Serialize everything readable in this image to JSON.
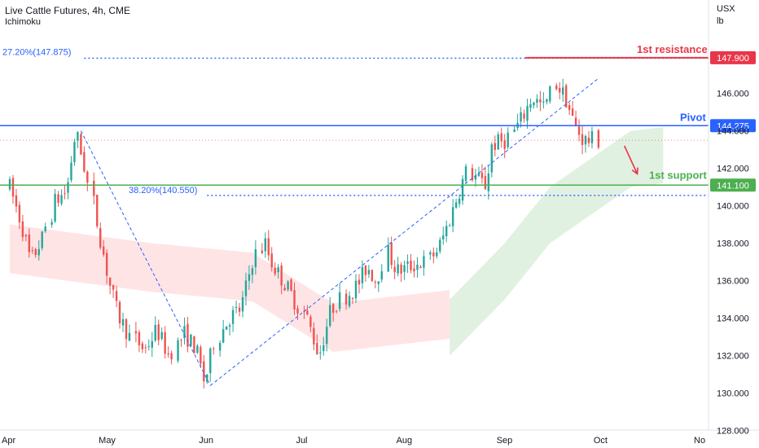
{
  "header": {
    "title": "Live Cattle Futures, 4h, CME",
    "indicator": "Ichimoku"
  },
  "units": {
    "currency": "USX",
    "unit": "lb"
  },
  "colors": {
    "up": "#26a69a",
    "down": "#ef5350",
    "resistance": "#e8364a",
    "pivot": "#2962ff",
    "support": "#4caf50",
    "fib": "#2962ff",
    "trend": "#2962ff",
    "cloud_bull": "#c8e6c9",
    "cloud_bear": "#ffcdd2",
    "axis_text": "#131722",
    "grid": "#e0e3eb"
  },
  "chart_data": {
    "type": "candlestick",
    "title": "Live Cattle Futures, 4h, CME",
    "ylim": [
      127.2,
      148.8
    ],
    "y_ticks": [
      "128.000",
      "130.000",
      "132.000",
      "134.000",
      "136.000",
      "138.000",
      "140.000",
      "142.000",
      "144.000",
      "146.000"
    ],
    "x_ticks": [
      {
        "label": "Apr",
        "date": "2023-04-01"
      },
      {
        "label": "May",
        "date": "2023-05-01"
      },
      {
        "label": "Jun",
        "date": "2023-06-01"
      },
      {
        "label": "Jul",
        "date": "2023-07-01"
      },
      {
        "label": "Aug",
        "date": "2023-08-01"
      },
      {
        "label": "Sep",
        "date": "2023-09-01"
      },
      {
        "label": "Oct",
        "date": "2023-10-01"
      },
      {
        "label": "No",
        "date": "2023-11-01"
      }
    ],
    "levels": [
      {
        "name": "1st resistance",
        "value": 147.9,
        "price_label": "147.900"
      },
      {
        "name": "Pivot",
        "value": 144.275,
        "price_label": "144.275"
      },
      {
        "name": "1st support",
        "value": 141.1,
        "price_label": "141.100"
      }
    ],
    "fib_levels": [
      {
        "label": "27.20%(147.875)",
        "value": 147.875
      },
      {
        "label": "38.20%(140.550)",
        "value": 140.55
      }
    ],
    "last_price": 143.5,
    "candle_path": [
      [
        "2023-04-01",
        141.0
      ],
      [
        "2023-04-05",
        139.0
      ],
      [
        "2023-04-08",
        137.0
      ],
      [
        "2023-04-12",
        138.3
      ],
      [
        "2023-04-15",
        140.2
      ],
      [
        "2023-04-19",
        140.8
      ],
      [
        "2023-04-22",
        144.0
      ],
      [
        "2023-04-25",
        142.0
      ],
      [
        "2023-04-28",
        139.2
      ],
      [
        "2023-05-02",
        136.0
      ],
      [
        "2023-05-05",
        134.2
      ],
      [
        "2023-05-09",
        133.0
      ],
      [
        "2023-05-13",
        132.3
      ],
      [
        "2023-05-17",
        133.4
      ],
      [
        "2023-05-21",
        132.0
      ],
      [
        "2023-05-25",
        133.2
      ],
      [
        "2023-05-29",
        132.4
      ],
      [
        "2023-06-01",
        130.5
      ],
      [
        "2023-06-04",
        132.8
      ],
      [
        "2023-06-08",
        134.0
      ],
      [
        "2023-06-12",
        134.5
      ],
      [
        "2023-06-16",
        137.2
      ],
      [
        "2023-06-19",
        138.0
      ],
      [
        "2023-06-21",
        137.0
      ],
      [
        "2023-06-25",
        136.0
      ],
      [
        "2023-06-28",
        135.2
      ],
      [
        "2023-07-02",
        134.0
      ],
      [
        "2023-07-06",
        132.0
      ],
      [
        "2023-07-10",
        134.5
      ],
      [
        "2023-07-14",
        135.2
      ],
      [
        "2023-07-18",
        135.8
      ],
      [
        "2023-07-21",
        136.8
      ],
      [
        "2023-07-24",
        136.0
      ],
      [
        "2023-07-27",
        137.5
      ],
      [
        "2023-07-30",
        136.5
      ],
      [
        "2023-08-04",
        136.8
      ],
      [
        "2023-08-08",
        137.0
      ],
      [
        "2023-08-12",
        137.8
      ],
      [
        "2023-08-16",
        139.5
      ],
      [
        "2023-08-18",
        140.5
      ],
      [
        "2023-08-21",
        141.8
      ],
      [
        "2023-08-24",
        141.4
      ],
      [
        "2023-08-27",
        141.0
      ],
      [
        "2023-08-28",
        143.2
      ],
      [
        "2023-09-02",
        143.5
      ],
      [
        "2023-09-06",
        144.5
      ],
      [
        "2023-09-10",
        145.8
      ],
      [
        "2023-09-14",
        145.2
      ],
      [
        "2023-09-17",
        146.5
      ],
      [
        "2023-09-20",
        145.8
      ],
      [
        "2023-09-23",
        144.3
      ],
      [
        "2023-09-26",
        143.5
      ],
      [
        "2023-09-29",
        143.5
      ],
      [
        "2023-10-01",
        143.5
      ]
    ],
    "trend_lines": [
      {
        "from": [
          "2023-04-23",
          144.0
        ],
        "to": [
          "2023-06-02",
          130.4
        ]
      },
      {
        "from": [
          "2023-06-02",
          130.4
        ],
        "to": [
          "2023-09-30",
          146.8
        ]
      }
    ],
    "projection": {
      "from": [
        "2023-10-08",
        143.2
      ],
      "to": [
        "2023-10-12",
        141.7
      ]
    },
    "ichimoku_cloud": {
      "bearish_region": [
        [
          "2023-04-01",
          139.0
        ],
        [
          "2023-05-15",
          138.0
        ],
        [
          "2023-06-15",
          137.5
        ],
        [
          "2023-07-10",
          134.8
        ],
        [
          "2023-08-15",
          135.5
        ]
      ],
      "bullish_region": [
        [
          "2023-08-15",
          135.0
        ],
        [
          "2023-09-01",
          138.0
        ],
        [
          "2023-09-15",
          141.0
        ],
        [
          "2023-10-10",
          144.0
        ],
        [
          "2023-10-20",
          144.2
        ]
      ]
    }
  }
}
